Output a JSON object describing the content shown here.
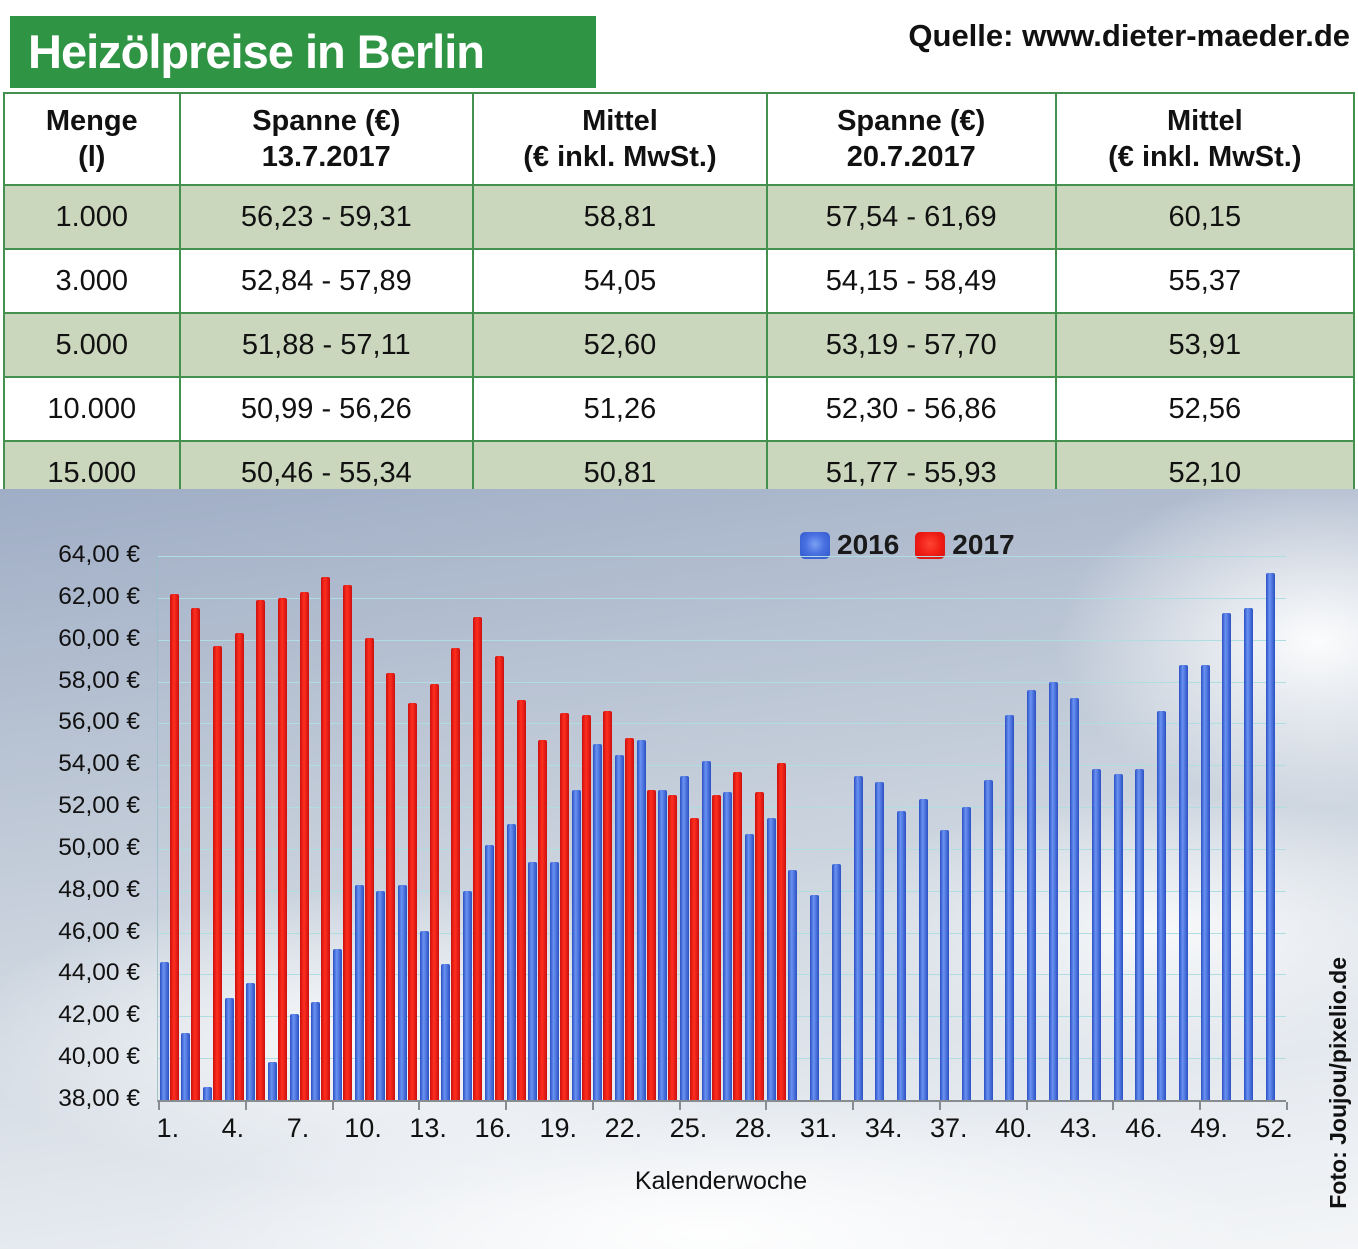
{
  "header": {
    "title": "Heizölpreise in Berlin",
    "source": "Quelle: www.dieter-maeder.de"
  },
  "table": {
    "headers": [
      {
        "line1": "Menge",
        "line2": "(l)"
      },
      {
        "line1": "Spanne (€)",
        "line2": "13.7.2017"
      },
      {
        "line1": "Mittel",
        "line2": "(€ inkl. MwSt.)"
      },
      {
        "line1": "Spanne (€)",
        "line2": "20.7.2017"
      },
      {
        "line1": "Mittel",
        "line2": "(€ inkl. MwSt.)"
      }
    ],
    "rows": [
      [
        "1.000",
        "56,23 - 59,31",
        "58,81",
        "57,54 - 61,69",
        "60,15"
      ],
      [
        "3.000",
        "52,84 - 57,89",
        "54,05",
        "54,15 - 58,49",
        "55,37"
      ],
      [
        "5.000",
        "51,88 - 57,11",
        "52,60",
        "53,19 - 57,70",
        "53,91"
      ],
      [
        "10.000",
        "50,99 - 56,26",
        "51,26",
        "52,30 - 56,86",
        "52,56"
      ],
      [
        "15.000",
        "50,46 - 55,34",
        "50,81",
        "51,77 - 55,93",
        "52,10"
      ]
    ]
  },
  "chart_data": {
    "type": "bar",
    "title": "",
    "xlabel": "Kalenderwoche",
    "ylabel": "",
    "ylim": [
      38,
      64
    ],
    "ytick_step": 2,
    "grid": true,
    "legend_position": "top",
    "ytick_labels": [
      "64,00 €",
      "62,00 €",
      "60,00 €",
      "58,00 €",
      "56,00 €",
      "54,00 €",
      "52,00 €",
      "50,00 €",
      "48,00 €",
      "46,00 €",
      "44,00 €",
      "42,00 €",
      "40,00 €",
      "38,00 €"
    ],
    "categories": [
      1,
      2,
      3,
      4,
      5,
      6,
      7,
      8,
      9,
      10,
      11,
      12,
      13,
      14,
      15,
      16,
      17,
      18,
      19,
      20,
      21,
      22,
      23,
      24,
      25,
      26,
      27,
      28,
      29,
      30,
      31,
      32,
      33,
      34,
      35,
      36,
      37,
      38,
      39,
      40,
      41,
      42,
      43,
      44,
      45,
      46,
      47,
      48,
      49,
      50,
      51,
      52
    ],
    "xtick_weeks": [
      1,
      4,
      7,
      10,
      13,
      16,
      19,
      22,
      25,
      28,
      31,
      34,
      37,
      40,
      43,
      46,
      49,
      52
    ],
    "xtick_labels": [
      "1.",
      "4.",
      "7.",
      "10.",
      "13.",
      "16.",
      "19.",
      "22.",
      "25.",
      "28.",
      "31.",
      "34.",
      "37.",
      "40.",
      "43.",
      "46.",
      "49.",
      "52."
    ],
    "series": [
      {
        "name": "2016",
        "color": "#3a64dd",
        "values": [
          44.6,
          41.2,
          38.6,
          42.9,
          43.6,
          39.8,
          42.1,
          42.7,
          45.2,
          48.3,
          48.0,
          48.3,
          46.1,
          44.5,
          48.0,
          50.2,
          51.2,
          49.4,
          49.4,
          52.8,
          55.0,
          54.5,
          55.2,
          52.8,
          53.5,
          54.2,
          52.7,
          50.7,
          51.5,
          49.0,
          47.8,
          49.3,
          53.5,
          53.2,
          51.8,
          52.4,
          50.9,
          52.0,
          53.3,
          56.4,
          57.6,
          58.0,
          57.2,
          53.8,
          53.6,
          53.8,
          56.6,
          58.8,
          58.8,
          61.3,
          61.5,
          63.2
        ]
      },
      {
        "name": "2017",
        "color": "#ee1212",
        "values": [
          62.2,
          61.5,
          59.7,
          60.3,
          61.9,
          62.0,
          62.3,
          63.0,
          62.6,
          60.1,
          58.4,
          57.0,
          57.9,
          59.6,
          61.1,
          59.2,
          57.1,
          55.2,
          56.5,
          56.4,
          56.6,
          55.3,
          52.8,
          52.6,
          51.5,
          52.6,
          53.7,
          52.7,
          54.1
        ]
      }
    ]
  },
  "photo_credit": "Foto: Joujou/pixelio.de",
  "colors": {
    "title_bg": "#2f9545",
    "table_border": "#43904f",
    "row_alt": "#cbd7bc",
    "gridline": "#aedde2",
    "axis": "#878c90"
  }
}
